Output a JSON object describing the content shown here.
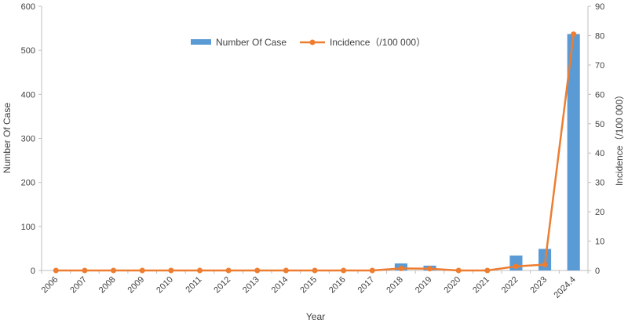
{
  "chart_data": {
    "type": "bar+line",
    "categories": [
      "2006",
      "2007",
      "2008",
      "2009",
      "2010",
      "2011",
      "2012",
      "2013",
      "2014",
      "2015",
      "2016",
      "2017",
      "2018",
      "2019",
      "2020",
      "2021",
      "2022",
      "2023",
      "2024.4"
    ],
    "series": [
      {
        "name": "Number Of Case",
        "type": "bar",
        "axis": "left",
        "color": "#5B9BD5",
        "values": [
          0,
          0,
          0,
          0,
          0,
          0,
          0,
          0,
          0,
          0,
          0,
          0,
          16,
          11,
          0,
          0,
          34,
          49,
          537
        ]
      },
      {
        "name": "Incidence（/100 000）",
        "type": "line",
        "axis": "right",
        "color": "#ED7D31",
        "values": [
          0,
          0,
          0,
          0,
          0,
          0,
          0,
          0,
          0,
          0,
          0,
          0,
          0.7,
          0.6,
          0,
          0,
          1.4,
          2.0,
          80.5
        ]
      }
    ],
    "xlabel": "Year",
    "ylabel": "Number  Of Case",
    "y2label": "Incidence（/100 000）",
    "ylim": [
      0,
      600
    ],
    "y2lim": [
      0,
      90
    ],
    "yticks": [
      0,
      100,
      200,
      300,
      400,
      500,
      600
    ],
    "y2ticks": [
      0,
      10,
      20,
      30,
      40,
      50,
      60,
      70,
      80,
      90
    ],
    "grid": false,
    "legend": "top-center"
  }
}
